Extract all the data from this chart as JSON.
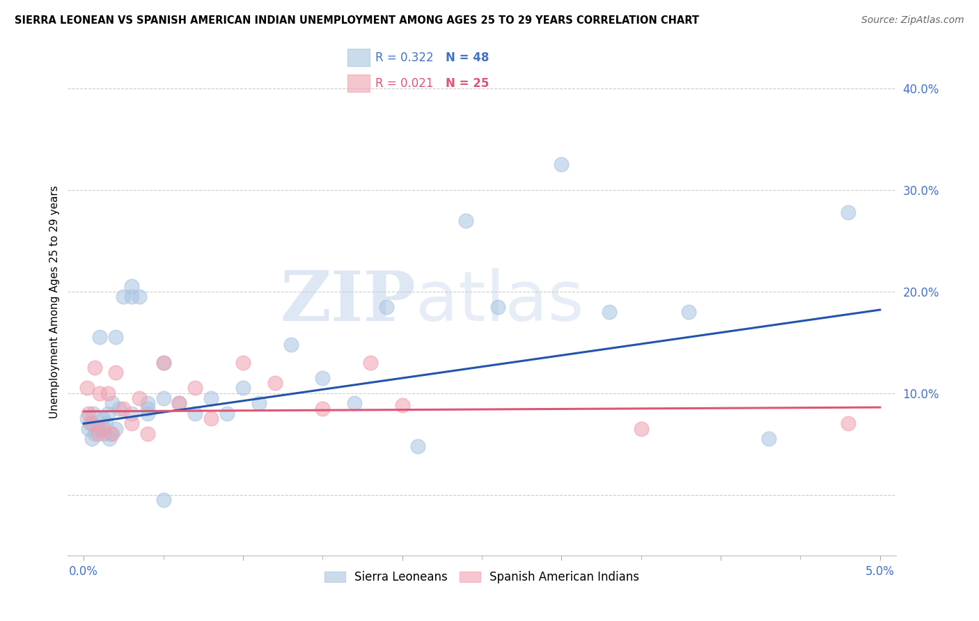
{
  "title": "SIERRA LEONEAN VS SPANISH AMERICAN INDIAN UNEMPLOYMENT AMONG AGES 25 TO 29 YEARS CORRELATION CHART",
  "source": "Source: ZipAtlas.com",
  "ylabel": "Unemployment Among Ages 25 to 29 years",
  "xlim": [
    -0.001,
    0.051
  ],
  "ylim": [
    -0.06,
    0.44
  ],
  "xticks": [
    0.0,
    0.01,
    0.02,
    0.03,
    0.04,
    0.05
  ],
  "xtick_labels": [
    "0.0%",
    "",
    "",
    "",
    "",
    "5.0%"
  ],
  "yticks": [
    0.0,
    0.1,
    0.2,
    0.3,
    0.4
  ],
  "ytick_labels": [
    "",
    "10.0%",
    "20.0%",
    "30.0%",
    "40.0%"
  ],
  "blue_color": "#a8c4e0",
  "pink_color": "#f0a0b0",
  "blue_line_color": "#2255aa",
  "pink_line_color": "#dd5577",
  "legend_blue_R": "R = 0.322",
  "legend_blue_N": "N = 48",
  "legend_pink_R": "R = 0.021",
  "legend_pink_N": "N = 25",
  "legend_label_blue": "Sierra Leoneans",
  "legend_label_pink": "Spanish American Indians",
  "watermark_zip": "ZIP",
  "watermark_atlas": "atlas",
  "blue_scatter_x": [
    0.0002,
    0.0003,
    0.0004,
    0.0005,
    0.0006,
    0.0007,
    0.0008,
    0.001,
    0.001,
    0.0012,
    0.0013,
    0.0014,
    0.0015,
    0.0016,
    0.0017,
    0.0018,
    0.002,
    0.002,
    0.0022,
    0.0025,
    0.003,
    0.003,
    0.003,
    0.0035,
    0.004,
    0.004,
    0.004,
    0.005,
    0.005,
    0.005,
    0.006,
    0.007,
    0.008,
    0.009,
    0.01,
    0.011,
    0.013,
    0.015,
    0.017,
    0.019,
    0.021,
    0.024,
    0.026,
    0.03,
    0.033,
    0.038,
    0.043,
    0.048
  ],
  "blue_scatter_y": [
    0.075,
    0.065,
    0.07,
    0.055,
    0.08,
    0.06,
    0.065,
    0.155,
    0.065,
    0.075,
    0.06,
    0.07,
    0.08,
    0.055,
    0.06,
    0.09,
    0.155,
    0.065,
    0.085,
    0.195,
    0.205,
    0.195,
    0.08,
    0.195,
    0.09,
    0.085,
    0.08,
    0.13,
    0.095,
    -0.005,
    0.09,
    0.08,
    0.095,
    0.08,
    0.105,
    0.09,
    0.148,
    0.115,
    0.09,
    0.185,
    0.048,
    0.27,
    0.185,
    0.325,
    0.18,
    0.18,
    0.055,
    0.278
  ],
  "pink_scatter_x": [
    0.0002,
    0.0003,
    0.0005,
    0.0007,
    0.0009,
    0.001,
    0.0012,
    0.0015,
    0.0018,
    0.002,
    0.0025,
    0.003,
    0.0035,
    0.004,
    0.005,
    0.006,
    0.007,
    0.008,
    0.01,
    0.012,
    0.015,
    0.018,
    0.02,
    0.035,
    0.048
  ],
  "pink_scatter_y": [
    0.105,
    0.08,
    0.07,
    0.125,
    0.06,
    0.1,
    0.065,
    0.1,
    0.06,
    0.12,
    0.085,
    0.07,
    0.095,
    0.06,
    0.13,
    0.09,
    0.105,
    0.075,
    0.13,
    0.11,
    0.085,
    0.13,
    0.088,
    0.065,
    0.07
  ],
  "blue_line_x": [
    0.0,
    0.05
  ],
  "blue_line_y": [
    0.07,
    0.182
  ],
  "pink_line_x": [
    0.0,
    0.05
  ],
  "pink_line_y": [
    0.082,
    0.086
  ],
  "grid_color": "#cccccc",
  "axis_color": "#4472c4",
  "title_fontsize": 10.5,
  "source_fontsize": 10,
  "tick_fontsize": 12,
  "ylabel_fontsize": 11
}
